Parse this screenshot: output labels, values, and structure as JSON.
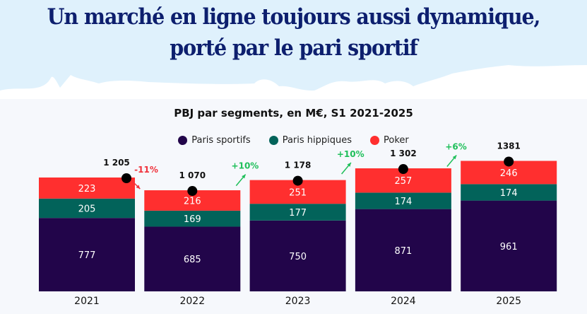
{
  "header": {
    "title_line1": "Un marché en ligne toujours aussi dynamique,",
    "title_line2": "porté par le pari sportif"
  },
  "chart_data": {
    "type": "bar",
    "stacked": true,
    "title": "PBJ par segments, en M€, S1 2021-2025",
    "xlabel": "",
    "ylabel": "",
    "categories": [
      "2021",
      "2022",
      "2023",
      "2024",
      "2025"
    ],
    "series": [
      {
        "name": "Paris sportifs",
        "color": "#22054a",
        "values": [
          777,
          685,
          750,
          871,
          961
        ]
      },
      {
        "name": "Paris hippiques",
        "color": "#02635a",
        "values": [
          205,
          169,
          177,
          174,
          174
        ]
      },
      {
        "name": "Poker",
        "color": "#ff2f2f",
        "values": [
          223,
          216,
          251,
          257,
          246
        ]
      }
    ],
    "totals": [
      1205,
      1070,
      1178,
      1302,
      1381
    ],
    "total_labels": [
      "1 205",
      "1 070",
      "1 178",
      "1 302",
      "1381"
    ],
    "growth": [
      {
        "label": "-11%",
        "color": "#f0323c"
      },
      {
        "label": "+10%",
        "color": "#1fbf5a"
      },
      {
        "label": "+10%",
        "color": "#1fbf5a"
      },
      {
        "label": "+6%",
        "color": "#1fbf5a"
      }
    ],
    "legend_position": "top-center",
    "grid": false
  }
}
